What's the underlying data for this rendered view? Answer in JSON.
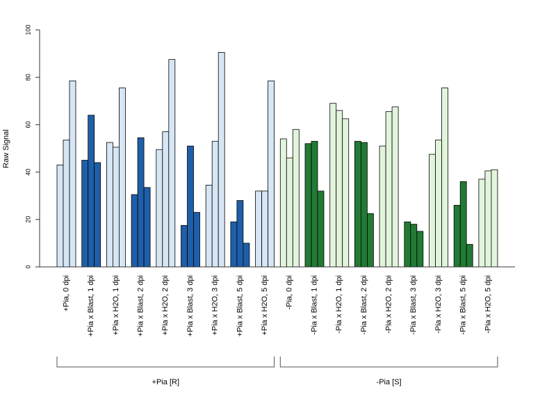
{
  "chart_data": {
    "type": "bar",
    "ylabel": "Raw Signal",
    "ylim": [
      0,
      100
    ],
    "yticks": [
      0,
      20,
      40,
      60,
      80,
      100
    ],
    "grid": false,
    "categories": [
      "+Pia, 0 dpi",
      "+Pia x Blast, 1 dpi",
      "+Pia x H2O, 1 dpi",
      "+Pia x Blast, 2 dpi",
      "+Pia x H2O, 2 dpi",
      "+Pia x Blast, 3 dpi",
      "+Pia x H2O, 3 dpi",
      "+Pia x Blast, 5 dpi",
      "+Pia x H2O, 5 dpi",
      "-Pia, 0 dpi",
      "-Pia x Blast, 1 dpi",
      "-Pia x H2O, 1 dpi",
      "-Pia x Blast, 2 dpi",
      "-Pia x H2O, 2 dpi",
      "-Pia x Blast, 3 dpi",
      "-Pia x H2O, 3 dpi",
      "-Pia x Blast, 5 dpi",
      "-Pia x H2O, 5 dpi"
    ],
    "values": [
      [
        43,
        53.5,
        78.5
      ],
      [
        45,
        64,
        44
      ],
      [
        52.5,
        50.5,
        75.5
      ],
      [
        30.5,
        54.5,
        33.5
      ],
      [
        49.5,
        57,
        87.5
      ],
      [
        17.5,
        51,
        23
      ],
      [
        34.5,
        53,
        90.5
      ],
      [
        19,
        28,
        10
      ],
      [
        32,
        32,
        78.5
      ],
      [
        54,
        46,
        58
      ],
      [
        52,
        53,
        32
      ],
      [
        69,
        66,
        62.5
      ],
      [
        53,
        52.5,
        22.5
      ],
      [
        51,
        65.5,
        67.5
      ],
      [
        19,
        18,
        15
      ],
      [
        47.5,
        53.5,
        75.5
      ],
      [
        26,
        36,
        9.5
      ],
      [
        37,
        40.5,
        41
      ]
    ],
    "groups": [
      {
        "label": "+Pia [R]",
        "from": 0,
        "to": 8
      },
      {
        "label": "-Pia [S]",
        "from": 9,
        "to": 17
      }
    ],
    "colors": {
      "r_light": "#d6e6f5",
      "r_dark": "#1f5fa9",
      "s_light": "#e2f5dc",
      "s_dark": "#227a34",
      "stroke": "#000000",
      "axis": "#333333"
    }
  }
}
